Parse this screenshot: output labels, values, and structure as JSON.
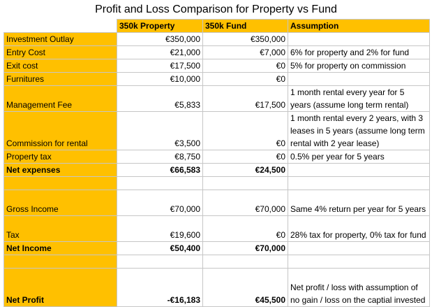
{
  "title": "Profit and Loss Comparison for Property vs Fund",
  "header": {
    "corner": "",
    "col_property": "350k Property",
    "col_fund": "350k Fund",
    "col_assumption": "Assumption"
  },
  "rows": [
    {
      "label": "Investment Outlay",
      "property": "€350,000",
      "fund": "€350,000",
      "assumption": ""
    },
    {
      "label": "Entry Cost",
      "property": "€21,000",
      "fund": "€7,000",
      "assumption": "6% for property and 2% for fund"
    },
    {
      "label": "Exit cost",
      "property": "€17,500",
      "fund": "€0",
      "assumption": "5% for property on commission"
    },
    {
      "label": "Furnitures",
      "property": "€10,000",
      "fund": "€0",
      "assumption": ""
    },
    {
      "label": "Management Fee",
      "property": "€5,833",
      "fund": "€17,500",
      "assumption": "1 month rental every year for 5 years (assume long term rental)"
    },
    {
      "label": "Commission for rental",
      "property": "€3,500",
      "fund": "€0",
      "assumption": "1 month rental every 2 years, with 3 leases in 5 years (assume long term rental with 2 year lease)"
    },
    {
      "label": "Property tax",
      "property": "€8,750",
      "fund": "€0",
      "assumption": "0.5% per year for 5 years"
    },
    {
      "label": "Net expenses",
      "property": "€66,583",
      "fund": "€24,500",
      "assumption": ""
    },
    {
      "label": "",
      "property": "",
      "fund": "",
      "assumption": ""
    },
    {
      "label": "Gross Income",
      "property": "€70,000",
      "fund": "€70,000",
      "assumption": "Same 4% return per year for 5 years"
    },
    {
      "label": "Tax",
      "property": "€19,600",
      "fund": "€0",
      "assumption": "28% tax for property, 0% tax for fund"
    },
    {
      "label": "Net Income",
      "property": "€50,400",
      "fund": "€70,000",
      "assumption": ""
    },
    {
      "label": "",
      "property": "",
      "fund": "",
      "assumption": ""
    },
    {
      "label": "Net Profit",
      "property": "-€16,183",
      "fund": "€45,500",
      "assumption": "Net profit / loss with assumption of no gain / loss on the captial invested"
    }
  ],
  "colors": {
    "highlight": "#ffc000",
    "grid": "#c6c6c6"
  }
}
